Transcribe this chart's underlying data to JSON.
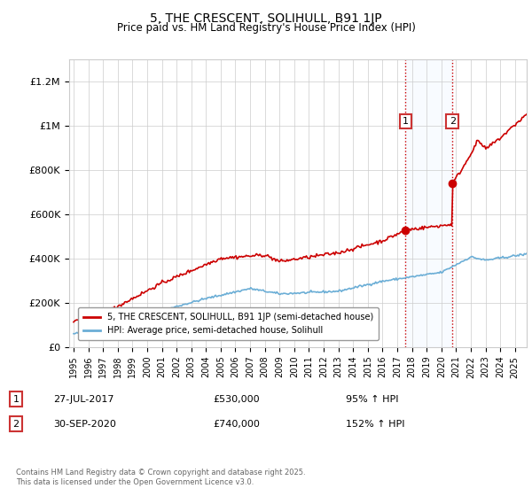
{
  "title": "5, THE CRESCENT, SOLIHULL, B91 1JP",
  "subtitle": "Price paid vs. HM Land Registry's House Price Index (HPI)",
  "title_fontsize": 10,
  "subtitle_fontsize": 8.5,
  "ylabel_ticks": [
    "£0",
    "£200K",
    "£400K",
    "£600K",
    "£800K",
    "£1M",
    "£1.2M"
  ],
  "ytick_values": [
    0,
    200000,
    400000,
    600000,
    800000,
    1000000,
    1200000
  ],
  "ylim": [
    0,
    1300000
  ],
  "xlim_start": 1994.7,
  "xlim_end": 2025.8,
  "xtick_years": [
    1995,
    1996,
    1997,
    1998,
    1999,
    2000,
    2001,
    2002,
    2003,
    2004,
    2005,
    2006,
    2007,
    2008,
    2009,
    2010,
    2011,
    2012,
    2013,
    2014,
    2015,
    2016,
    2017,
    2018,
    2019,
    2020,
    2021,
    2022,
    2023,
    2024,
    2025
  ],
  "hpi_color": "#6baed6",
  "price_color": "#cc0000",
  "vline_color": "#cc0000",
  "shaded_region_color": "#ddeeff",
  "sale1_x": 2017.57,
  "sale1_y": 530000,
  "sale2_x": 2020.75,
  "sale2_y": 740000,
  "sale1_label": "1",
  "sale2_label": "2",
  "legend_entry1": "5, THE CRESCENT, SOLIHULL, B91 1JP (semi-detached house)",
  "legend_entry2": "HPI: Average price, semi-detached house, Solihull",
  "annotation1_date": "27-JUL-2017",
  "annotation1_price": "£530,000",
  "annotation1_hpi": "95% ↑ HPI",
  "annotation2_date": "30-SEP-2020",
  "annotation2_price": "£740,000",
  "annotation2_hpi": "152% ↑ HPI",
  "footer": "Contains HM Land Registry data © Crown copyright and database right 2025.\nThis data is licensed under the Open Government Licence v3.0.",
  "background_color": "#ffffff",
  "grid_color": "#cccccc"
}
